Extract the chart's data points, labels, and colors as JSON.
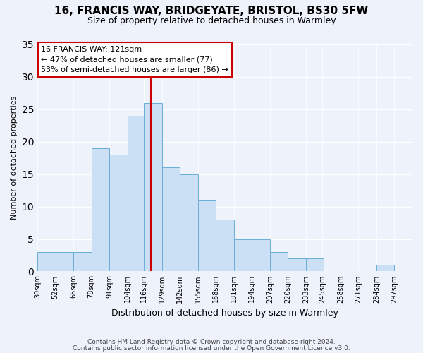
{
  "title": "16, FRANCIS WAY, BRIDGEYATE, BRISTOL, BS30 5FW",
  "subtitle": "Size of property relative to detached houses in Warmley",
  "xlabel": "Distribution of detached houses by size in Warmley",
  "ylabel": "Number of detached properties",
  "bar_color": "#cce0f5",
  "bar_edge_color": "#6baed6",
  "background_color": "#eef2fb",
  "bin_labels": [
    "39sqm",
    "52sqm",
    "65sqm",
    "78sqm",
    "91sqm",
    "104sqm",
    "116sqm",
    "129sqm",
    "142sqm",
    "155sqm",
    "168sqm",
    "181sqm",
    "194sqm",
    "207sqm",
    "220sqm",
    "233sqm",
    "245sqm",
    "258sqm",
    "271sqm",
    "284sqm",
    "297sqm"
  ],
  "bin_edges": [
    39,
    52,
    65,
    78,
    91,
    104,
    116,
    129,
    142,
    155,
    168,
    181,
    194,
    207,
    220,
    233,
    245,
    258,
    271,
    284,
    297
  ],
  "counts": [
    3,
    3,
    3,
    19,
    18,
    24,
    26,
    16,
    15,
    11,
    8,
    5,
    5,
    3,
    2,
    2,
    0,
    0,
    0,
    1
  ],
  "property_size": 121,
  "annotation_title": "16 FRANCIS WAY: 121sqm",
  "annotation_line1": "← 47% of detached houses are smaller (77)",
  "annotation_line2": "53% of semi-detached houses are larger (86) →",
  "vline_color": "#cc0000",
  "ylim": [
    0,
    35
  ],
  "yticks": [
    0,
    5,
    10,
    15,
    20,
    25,
    30,
    35
  ],
  "footer_line1": "Contains HM Land Registry data © Crown copyright and database right 2024.",
  "footer_line2": "Contains public sector information licensed under the Open Government Licence v3.0."
}
